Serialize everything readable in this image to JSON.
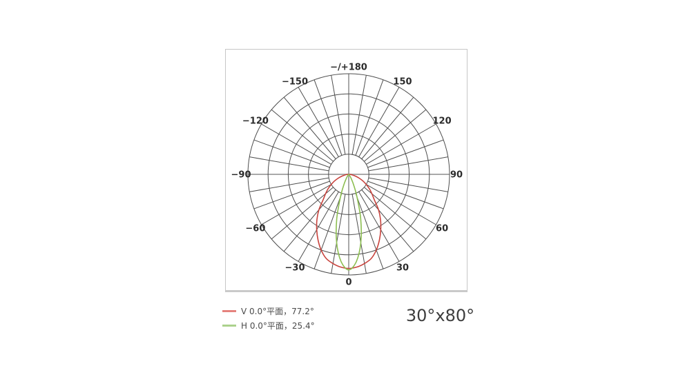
{
  "beam_size_label": "30°x80°",
  "legend": {
    "items": [
      {
        "label": "V 0.0°平面，77.2°",
        "color": "#c8423c",
        "swatch_color": "#e5827d"
      },
      {
        "label": "H 0.0°平面，25.4°",
        "color": "#8cbe50",
        "swatch_color": "#abd18c"
      }
    ]
  },
  "chart_data": {
    "type": "line",
    "subtype": "polar-photometric-intensity-diagram",
    "angle_unit": "deg",
    "radial_axis": {
      "rings": 5,
      "outer_value": 1.0,
      "note": "relative luminous intensity, outer ring = 1.0"
    },
    "grid": {
      "spoke_step_deg": 10,
      "inner_hole_ratio": 0.2,
      "grid_color": "#4d4d4d",
      "axis_color": "#a9a9a9"
    },
    "angle_labels": [
      {
        "angle": 0,
        "label": "0"
      },
      {
        "angle": 30,
        "label": "30"
      },
      {
        "angle": 60,
        "label": "60"
      },
      {
        "angle": 90,
        "label": "90"
      },
      {
        "angle": 120,
        "label": "120"
      },
      {
        "angle": 150,
        "label": "150"
      },
      {
        "angle": 180,
        "label": "−/+180"
      },
      {
        "angle": -150,
        "label": "−150"
      },
      {
        "angle": -120,
        "label": "−120"
      },
      {
        "angle": -90,
        "label": "−90"
      },
      {
        "angle": -60,
        "label": "−60"
      },
      {
        "angle": -30,
        "label": "−30"
      }
    ],
    "series": [
      {
        "name": "V 0.0°平面",
        "beam_angle": "77.2°",
        "color": "#c8423c",
        "points": [
          [
            -90,
            0
          ],
          [
            -85,
            0.02
          ],
          [
            -80,
            0.04
          ],
          [
            -75,
            0.07
          ],
          [
            -70,
            0.11
          ],
          [
            -65,
            0.155
          ],
          [
            -60,
            0.2
          ],
          [
            -55,
            0.25
          ],
          [
            -50,
            0.3
          ],
          [
            -45,
            0.36
          ],
          [
            -40,
            0.46
          ],
          [
            -35,
            0.55
          ],
          [
            -30,
            0.635
          ],
          [
            -25,
            0.72
          ],
          [
            -20,
            0.8
          ],
          [
            -15,
            0.865
          ],
          [
            -10,
            0.9
          ],
          [
            -5,
            0.925
          ],
          [
            0,
            0.935
          ],
          [
            5,
            0.925
          ],
          [
            10,
            0.9
          ],
          [
            15,
            0.865
          ],
          [
            20,
            0.8
          ],
          [
            25,
            0.72
          ],
          [
            30,
            0.635
          ],
          [
            35,
            0.55
          ],
          [
            40,
            0.46
          ],
          [
            45,
            0.36
          ],
          [
            50,
            0.3
          ],
          [
            55,
            0.25
          ],
          [
            60,
            0.2
          ],
          [
            65,
            0.155
          ],
          [
            70,
            0.11
          ],
          [
            75,
            0.07
          ],
          [
            80,
            0.04
          ],
          [
            85,
            0.02
          ],
          [
            90,
            0
          ]
        ]
      },
      {
        "name": "H 0.0°平面",
        "beam_angle": "25.4°",
        "color": "#8cbe50",
        "points": [
          [
            -50,
            0
          ],
          [
            -45,
            0.003
          ],
          [
            -40,
            0.008
          ],
          [
            -35,
            0.02
          ],
          [
            -30,
            0.05
          ],
          [
            -25,
            0.115
          ],
          [
            -20,
            0.24
          ],
          [
            -15,
            0.46
          ],
          [
            -10,
            0.69
          ],
          [
            -5,
            0.87
          ],
          [
            0,
            0.95
          ],
          [
            5,
            0.87
          ],
          [
            10,
            0.69
          ],
          [
            15,
            0.46
          ],
          [
            20,
            0.24
          ],
          [
            25,
            0.115
          ],
          [
            30,
            0.05
          ],
          [
            35,
            0.02
          ],
          [
            40,
            0.008
          ],
          [
            45,
            0.003
          ],
          [
            50,
            0
          ]
        ]
      }
    ]
  }
}
